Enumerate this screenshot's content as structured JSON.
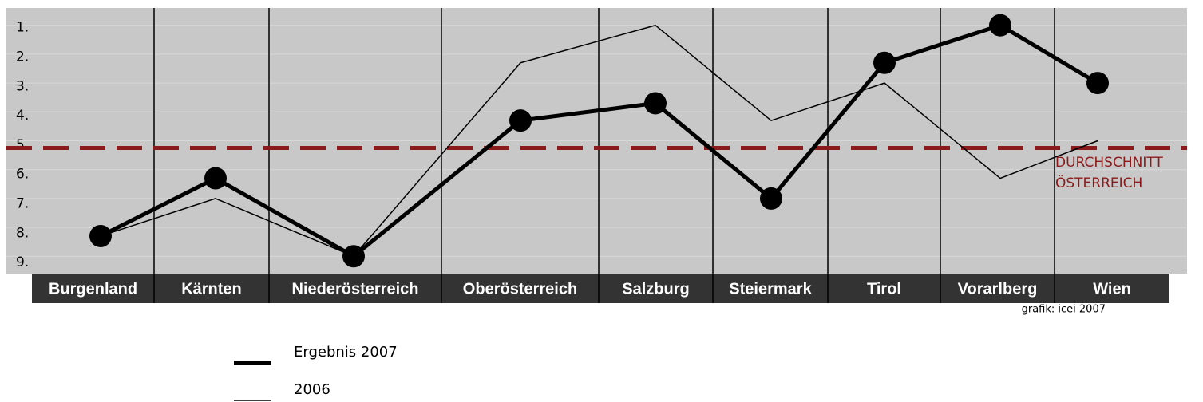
{
  "chart_data": {
    "type": "line",
    "categories": [
      "Burgenland",
      "Kärnten",
      "Niederösterreich",
      "Oberösterreich",
      "Salzburg",
      "Steiermark",
      "Tirol",
      "Vorarlberg",
      "Wien"
    ],
    "series": [
      {
        "name": "Ergebnis 2007",
        "color": "#000000",
        "values": [
          8.3,
          6.3,
          9,
          4.3,
          3.7,
          7,
          2.3,
          1,
          3
        ]
      },
      {
        "name": "2006",
        "color": "#000000",
        "values": [
          8.3,
          7,
          9,
          2.3,
          1,
          4.3,
          3,
          6.3,
          5
        ]
      }
    ],
    "ylim": [
      0.4,
      9.6
    ],
    "y_inverted": true,
    "yticks": [
      {
        "value": 1,
        "label": "1."
      },
      {
        "value": 2,
        "label": "2."
      },
      {
        "value": 3,
        "label": "3."
      },
      {
        "value": 4,
        "label": "4."
      },
      {
        "value": 5,
        "label": "5."
      },
      {
        "value": 6,
        "label": "6."
      },
      {
        "value": 7,
        "label": "7."
      },
      {
        "value": 8,
        "label": "8."
      },
      {
        "value": 9,
        "label": "9."
      }
    ],
    "grid": true,
    "reference_line": {
      "value": 5.25,
      "color": "#8b1a1a",
      "label": [
        "DURCHSCHNITT",
        "ÖSTERREICH"
      ]
    },
    "credit": "grafik: icei 2007"
  }
}
